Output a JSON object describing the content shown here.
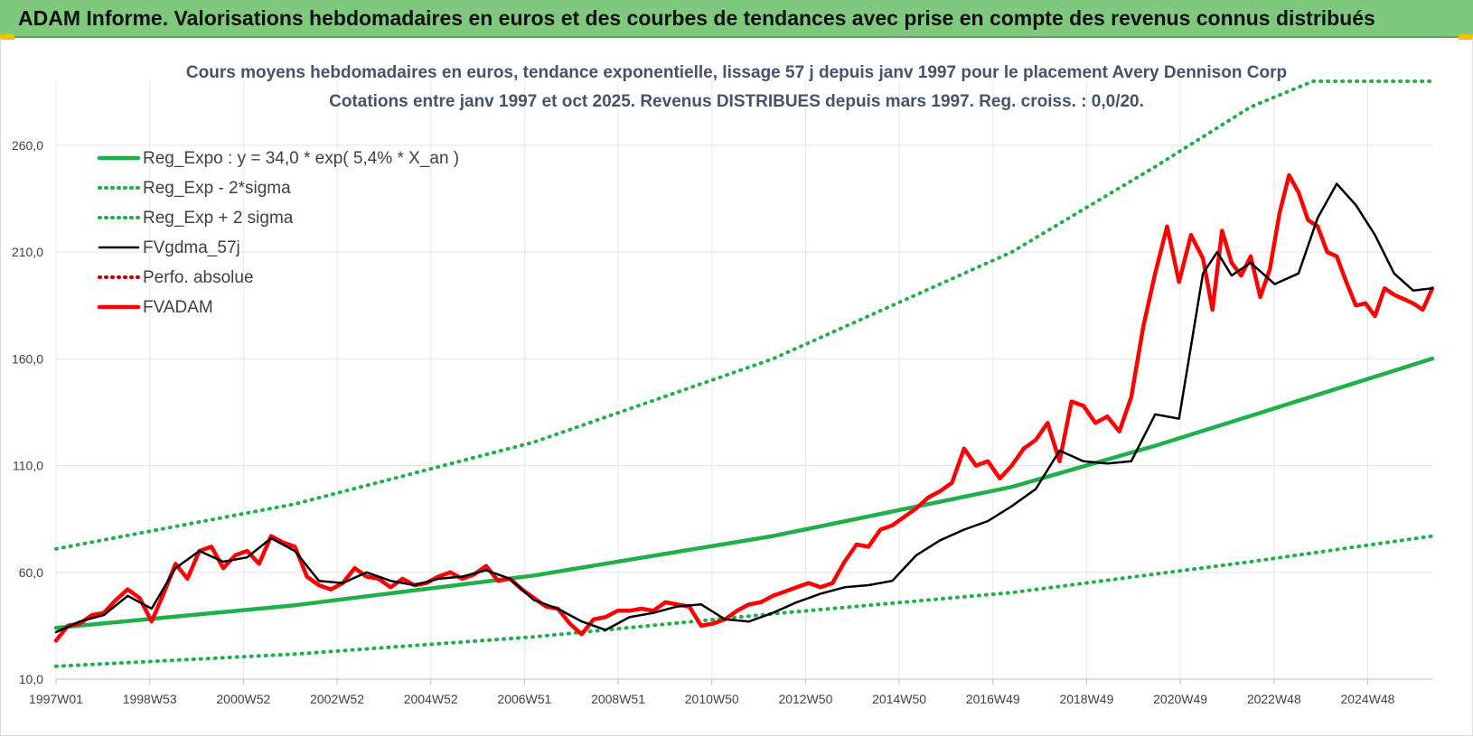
{
  "banner": {
    "title": "ADAM Informe. Valorisations hebdomadaires en euros et des courbes de tendances avec prise en compte des revenus connus distribués"
  },
  "colors": {
    "banner": "#7fc97f",
    "reg_expo": "#1fb04b",
    "sigma": "#1fb04b",
    "fvgdma": "#000000",
    "perfo": "#c00000",
    "fvadam": "#ff0000",
    "title": "#44546a"
  },
  "chart_data": {
    "type": "line",
    "title": "Cours moyens hebdomadaires en euros, tendance exponentielle, lissage 57 j depuis janv 1997 pour le placement Avery Dennison Corp",
    "subtitle": "Cotations entre janv 1997 et oct 2025. Revenus DISTRIBUES depuis mars 1997. Reg. croiss. : 0,0/20.",
    "xlabel": "",
    "ylabel": "",
    "ylim": [
      10,
      290
    ],
    "y_ticks": [
      "10,0",
      "60,0",
      "110,0",
      "160,0",
      "210,0",
      "260,0"
    ],
    "x_ticks": [
      "1997W01",
      "1998W53",
      "2000W52",
      "2002W52",
      "2004W52",
      "2006W51",
      "2008W51",
      "2010W50",
      "2012W50",
      "2014W50",
      "2016W49",
      "2018W49",
      "2020W49",
      "2022W48",
      "2024W48"
    ],
    "x_range_years": [
      1997.0,
      2025.8
    ],
    "legend_position": "top-left",
    "grid": true,
    "series": [
      {
        "name": "Reg_Expo : y = 34,0 * exp( 5,4% *  X_an )",
        "style": "solid-thick",
        "color": "#1fb04b",
        "x": [
          1997,
          2002,
          2007,
          2012,
          2017,
          2020,
          2022,
          2025.8
        ],
        "y": [
          34,
          44.6,
          58.5,
          77,
          100,
          119.3,
          133.3,
          160.1
        ]
      },
      {
        "name": "Reg_Exp - 2*sigma",
        "style": "dotted",
        "color": "#1fb04b",
        "x": [
          1997,
          2002,
          2007,
          2012,
          2017,
          2022,
          2025.8
        ],
        "y": [
          16,
          21.7,
          29.8,
          40.6,
          50.5,
          65,
          77
        ]
      },
      {
        "name": "Reg_Exp + 2 sigma",
        "style": "dotted",
        "color": "#1fb04b",
        "x": [
          1997,
          2002,
          2007,
          2012,
          2017,
          2020,
          2022,
          2023.3,
          2025.8
        ],
        "y": [
          71,
          92,
          121,
          160,
          210,
          250,
          278,
          290,
          290
        ]
      },
      {
        "name": "FVgdma_57j",
        "style": "solid",
        "color": "#000000",
        "x": [
          1997.0,
          1997.5,
          1998.0,
          1998.5,
          1999.0,
          1999.5,
          2000.0,
          2000.5,
          2001.0,
          2001.5,
          2002.0,
          2002.5,
          2003.0,
          2003.5,
          2004.0,
          2004.5,
          2005.0,
          2005.5,
          2006.0,
          2006.5,
          2007.0,
          2007.5,
          2008.0,
          2008.5,
          2009.0,
          2009.5,
          2010.0,
          2010.5,
          2011.0,
          2011.5,
          2012.0,
          2012.5,
          2013.0,
          2013.5,
          2014.0,
          2014.5,
          2015.0,
          2015.5,
          2016.0,
          2016.5,
          2017.0,
          2017.5,
          2018.0,
          2018.5,
          2019.0,
          2019.5,
          2020.0,
          2020.5,
          2021.0,
          2021.3,
          2021.6,
          2022.0,
          2022.5,
          2023.0,
          2023.4,
          2023.8,
          2024.2,
          2024.6,
          2025.0,
          2025.4,
          2025.8
        ],
        "y": [
          32,
          37,
          40,
          49,
          43,
          62,
          70,
          65,
          67,
          76,
          70,
          56,
          55,
          60,
          56,
          54,
          57,
          58,
          61,
          57,
          47,
          43,
          37,
          33,
          39,
          41,
          44,
          45,
          38,
          37,
          41,
          46,
          50,
          53,
          54,
          56,
          68,
          75,
          80,
          84,
          91,
          99,
          117,
          112,
          111,
          112,
          134,
          132,
          200,
          210,
          199,
          205,
          195,
          200,
          226,
          242,
          232,
          218,
          200,
          192,
          193
        ]
      },
      {
        "name": "Perfo. absolue",
        "style": "dotted",
        "color": "#c00000",
        "x": [],
        "y": []
      },
      {
        "name": "FVADAM",
        "style": "solid-thick",
        "color": "#ff0000",
        "x": [
          1997.0,
          1997.25,
          1997.5,
          1997.75,
          1998.0,
          1998.25,
          1998.5,
          1998.75,
          1999.0,
          1999.25,
          1999.5,
          1999.75,
          2000.0,
          2000.25,
          2000.5,
          2000.75,
          2001.0,
          2001.25,
          2001.5,
          2001.75,
          2002.0,
          2002.25,
          2002.5,
          2002.75,
          2003.0,
          2003.25,
          2003.5,
          2003.75,
          2004.0,
          2004.25,
          2004.5,
          2004.75,
          2005.0,
          2005.25,
          2005.5,
          2005.75,
          2006.0,
          2006.25,
          2006.5,
          2006.75,
          2007.0,
          2007.25,
          2007.5,
          2007.75,
          2008.0,
          2008.25,
          2008.5,
          2008.75,
          2009.0,
          2009.25,
          2009.5,
          2009.75,
          2010.0,
          2010.25,
          2010.5,
          2010.75,
          2011.0,
          2011.25,
          2011.5,
          2011.75,
          2012.0,
          2012.25,
          2012.5,
          2012.75,
          2013.0,
          2013.25,
          2013.5,
          2013.75,
          2014.0,
          2014.25,
          2014.5,
          2014.75,
          2015.0,
          2015.25,
          2015.5,
          2015.75,
          2016.0,
          2016.25,
          2016.5,
          2016.75,
          2017.0,
          2017.25,
          2017.5,
          2017.75,
          2018.0,
          2018.25,
          2018.5,
          2018.75,
          2019.0,
          2019.25,
          2019.5,
          2019.75,
          2020.0,
          2020.25,
          2020.5,
          2020.75,
          2021.0,
          2021.2,
          2021.4,
          2021.6,
          2021.8,
          2022.0,
          2022.2,
          2022.4,
          2022.6,
          2022.8,
          2023.0,
          2023.2,
          2023.4,
          2023.6,
          2023.8,
          2024.0,
          2024.2,
          2024.4,
          2024.6,
          2024.8,
          2025.0,
          2025.2,
          2025.4,
          2025.6,
          2025.8
        ],
        "y": [
          28,
          35,
          36,
          40,
          41,
          47,
          52,
          48,
          37,
          50,
          64,
          57,
          70,
          72,
          62,
          68,
          70,
          64,
          77,
          74,
          72,
          58,
          54,
          52,
          55,
          62,
          58,
          57,
          53,
          57,
          54,
          55,
          58,
          60,
          57,
          59,
          63,
          56,
          57,
          52,
          48,
          44,
          43,
          36,
          31,
          38,
          39,
          42,
          42,
          43,
          42,
          46,
          45,
          44,
          35,
          36,
          38,
          42,
          45,
          46,
          49,
          51,
          53,
          55,
          53,
          55,
          65,
          73,
          72,
          80,
          82,
          86,
          90,
          95,
          98,
          102,
          118,
          110,
          112,
          104,
          110,
          118,
          122,
          130,
          112,
          140,
          138,
          130,
          133,
          126,
          142,
          175,
          200,
          222,
          196,
          218,
          207,
          183,
          220,
          205,
          199,
          208,
          189,
          202,
          228,
          246,
          238,
          225,
          222,
          210,
          208,
          196,
          185,
          186,
          180,
          193,
          190,
          188,
          186,
          183,
          193
        ]
      }
    ]
  }
}
